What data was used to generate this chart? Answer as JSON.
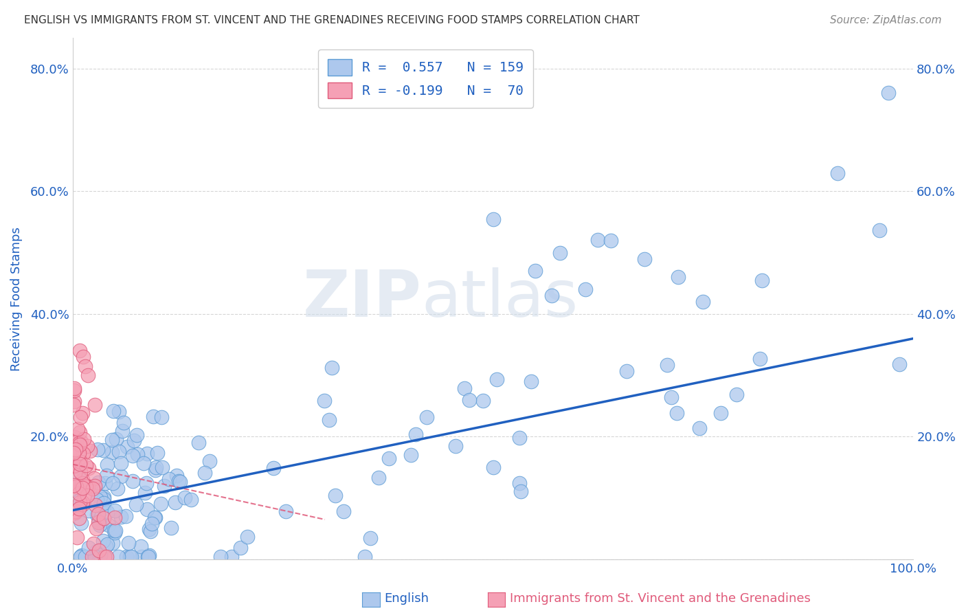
{
  "title": "ENGLISH VS IMMIGRANTS FROM ST. VINCENT AND THE GRENADINES RECEIVING FOOD STAMPS CORRELATION CHART",
  "source": "Source: ZipAtlas.com",
  "xlabel_english": "English",
  "xlabel_immigrants": "Immigrants from St. Vincent and the Grenadines",
  "ylabel": "Receiving Food Stamps",
  "xlim": [
    0,
    1.0
  ],
  "ylim": [
    0,
    0.85
  ],
  "xtick_labels": [
    "0.0%",
    "",
    "",
    "",
    "",
    "100.0%"
  ],
  "ytick_labels": [
    "",
    "20.0%",
    "40.0%",
    "60.0%",
    "80.0%"
  ],
  "english_color": "#adc8ed",
  "english_edge_color": "#5b9bd5",
  "immigrants_color": "#f5a0b5",
  "immigrants_edge_color": "#e05a7a",
  "trend_english_color": "#2060c0",
  "trend_immigrants_color": "#e05a7a",
  "R_english": 0.557,
  "N_english": 159,
  "R_immigrants": -0.199,
  "N_immigrants": 70,
  "legend_label_english": "R =  0.557   N = 159",
  "legend_label_immigrants": "R = -0.199   N =  70",
  "watermark_zip": "ZIP",
  "watermark_atlas": "atlas",
  "background_color": "#ffffff",
  "grid_color": "#cccccc",
  "title_color": "#333333",
  "axis_label_color": "#2060c0",
  "source_color": "#888888",
  "trend_line_start_x": 0.0,
  "trend_line_end_x": 1.0,
  "trend_line_start_y": 0.08,
  "trend_line_end_y": 0.36,
  "imm_trend_start_x": 0.0,
  "imm_trend_end_x": 0.3,
  "imm_trend_start_y": 0.155,
  "imm_trend_end_y": 0.065
}
